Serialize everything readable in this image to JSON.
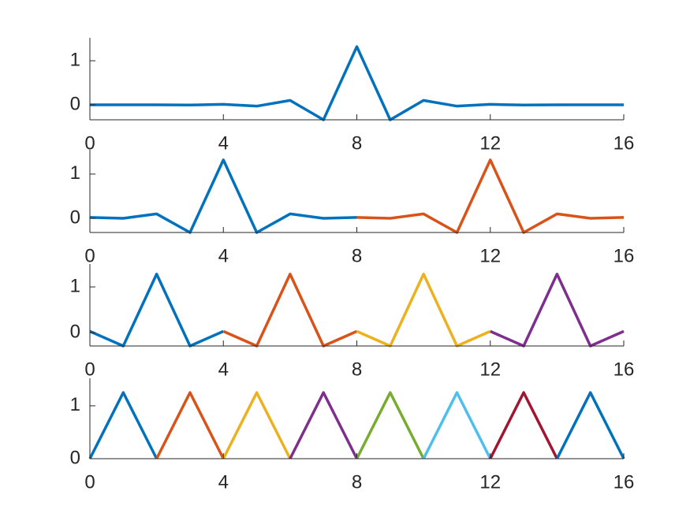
{
  "chart_data": [
    {
      "type": "line",
      "xlim": [
        0,
        16
      ],
      "ylim": [
        -0.34,
        1.52
      ],
      "xticks": [
        0,
        4,
        8,
        12,
        16
      ],
      "yticks": [
        0,
        1
      ],
      "series": [
        {
          "color": "#0072BD",
          "x": [
            0,
            1,
            2,
            3,
            4,
            5,
            6,
            7,
            8,
            9,
            10,
            11,
            12,
            13,
            14,
            15,
            16
          ],
          "values": [
            0,
            0,
            0,
            -0.005,
            0.01,
            -0.03,
            0.1,
            -0.34,
            1.32,
            -0.34,
            0.1,
            -0.03,
            0.01,
            -0.005,
            0,
            0,
            0
          ]
        }
      ]
    },
    {
      "type": "line",
      "xlim": [
        0,
        16
      ],
      "ylim": [
        -0.32,
        1.55
      ],
      "xticks": [
        0,
        4,
        8,
        12,
        16
      ],
      "yticks": [
        0,
        1
      ],
      "series": [
        {
          "color": "#0072BD",
          "x": [
            0,
            1,
            2,
            3,
            4,
            5,
            6,
            7,
            8
          ],
          "values": [
            0.02,
            0,
            0.1,
            -0.32,
            1.32,
            -0.32,
            0.1,
            0,
            0.02
          ]
        },
        {
          "color": "#D95319",
          "x": [
            8,
            9,
            10,
            11,
            12,
            13,
            14,
            15,
            16
          ],
          "values": [
            0.02,
            0,
            0.1,
            -0.32,
            1.32,
            -0.32,
            0.1,
            0,
            0.02
          ]
        }
      ]
    },
    {
      "type": "line",
      "xlim": [
        0,
        16
      ],
      "ylim": [
        -0.29,
        1.5
      ],
      "xticks": [
        0,
        4,
        8,
        12,
        16
      ],
      "yticks": [
        0,
        1
      ],
      "series": [
        {
          "color": "#0072BD",
          "x": [
            0,
            1,
            2,
            3,
            4
          ],
          "values": [
            0.03,
            -0.29,
            1.28,
            -0.29,
            0.03
          ]
        },
        {
          "color": "#D95319",
          "x": [
            4,
            5,
            6,
            7,
            8
          ],
          "values": [
            0.03,
            -0.29,
            1.28,
            -0.29,
            0.03
          ]
        },
        {
          "color": "#EDB120",
          "x": [
            8,
            9,
            10,
            11,
            12
          ],
          "values": [
            0.03,
            -0.29,
            1.28,
            -0.29,
            0.03
          ]
        },
        {
          "color": "#7E2F8E",
          "x": [
            12,
            13,
            14,
            15,
            16
          ],
          "values": [
            0.03,
            -0.29,
            1.28,
            -0.29,
            0.03
          ]
        }
      ]
    },
    {
      "type": "line",
      "xlim": [
        0,
        16
      ],
      "ylim": [
        0,
        1.52
      ],
      "xticks": [
        0,
        4,
        8,
        12,
        16
      ],
      "yticks": [
        0,
        1
      ],
      "series": [
        {
          "color": "#0072BD",
          "x": [
            0,
            1,
            2
          ],
          "values": [
            0,
            1.25,
            0
          ]
        },
        {
          "color": "#D95319",
          "x": [
            2,
            3,
            4
          ],
          "values": [
            0,
            1.25,
            0
          ]
        },
        {
          "color": "#EDB120",
          "x": [
            4,
            5,
            6
          ],
          "values": [
            0,
            1.25,
            0
          ]
        },
        {
          "color": "#7E2F8E",
          "x": [
            6,
            7,
            8
          ],
          "values": [
            0,
            1.25,
            0
          ]
        },
        {
          "color": "#77AC30",
          "x": [
            8,
            9,
            10
          ],
          "values": [
            0,
            1.25,
            0
          ]
        },
        {
          "color": "#4DBEEE",
          "x": [
            10,
            11,
            12
          ],
          "values": [
            0,
            1.25,
            0
          ]
        },
        {
          "color": "#A2142F",
          "x": [
            12,
            13,
            14
          ],
          "values": [
            0,
            1.25,
            0
          ]
        },
        {
          "color": "#0072BD",
          "x": [
            14,
            15,
            16
          ],
          "values": [
            0,
            1.25,
            0
          ]
        }
      ]
    }
  ]
}
